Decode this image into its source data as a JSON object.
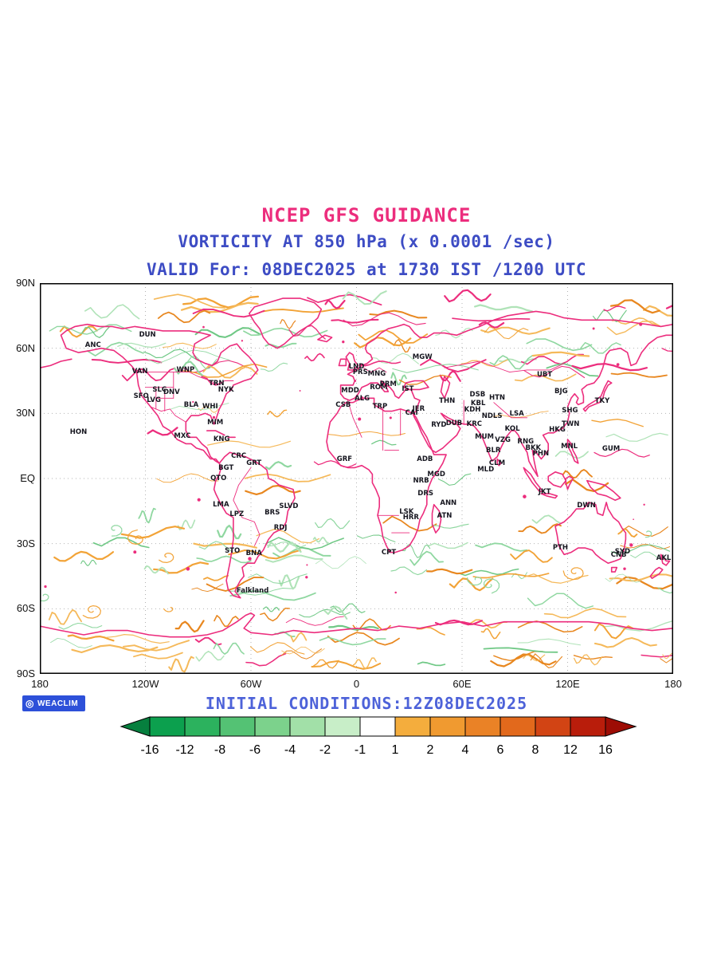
{
  "title": {
    "line1": "NCEP GFS GUIDANCE",
    "line2": "VORTICITY AT 850 hPa (x 0.0001 /sec)",
    "line3": "VALID For: 08DEC2025 at 1730 IST /1200 UTC"
  },
  "footer": {
    "initial_conditions": "INITIAL CONDITIONS:12Z08DEC2025",
    "brand": "WEACLIM"
  },
  "axes": {
    "lat_labels": [
      "90N",
      "60N",
      "30N",
      "EQ",
      "30S",
      "60S",
      "90S"
    ],
    "lon_labels": [
      "180",
      "120W",
      "60W",
      "0",
      "60E",
      "120E",
      "180"
    ]
  },
  "colors": {
    "magenta": "#ec2d7d",
    "blue": "#3d4cc4",
    "blue_light": "#4d62d9",
    "grid": "#b3b3b3",
    "badge": "#2d50d9",
    "coast": "#ec2d7d",
    "neg_green": "#8fd7a0",
    "pos_orange": "#f2a337",
    "label_text": "#16161f"
  },
  "colorbar": {
    "labels": [
      "-16",
      "-12",
      "-8",
      "-6",
      "-4",
      "-2",
      "-1",
      "1",
      "2",
      "4",
      "6",
      "8",
      "12",
      "16"
    ],
    "segment_colors": [
      "#0ca04e",
      "#2cb25e",
      "#54c274",
      "#7cd28c",
      "#a2e0a8",
      "#c8eec8",
      "#ffffff",
      "#f4ad3d",
      "#f09a30",
      "#ea8226",
      "#e2691c",
      "#d24414",
      "#b91d0b"
    ],
    "arrow_left_color": "#067f3e",
    "arrow_right_color": "#9d0d05"
  },
  "chart_data": {
    "type": "contour-map",
    "title": "NCEP GFS GUIDANCE",
    "variable": "vorticity",
    "level": "850 hPa",
    "units": "x 0.0001 /sec",
    "valid_time": "08DEC2025 at 1730 IST /1200 UTC",
    "initial_conditions": "12Z08DEC2025",
    "lon_range": [
      -180,
      180
    ],
    "lat_range": [
      -90,
      90
    ],
    "grid_interval_deg": 30,
    "colorbar_boundaries": [
      -16,
      -12,
      -8,
      -6,
      -4,
      -2,
      -1,
      1,
      2,
      4,
      6,
      8,
      12,
      16
    ],
    "negative_palette": "greens",
    "positive_palette": "orange-red",
    "coast_contour_color": "#ec2d7d"
  },
  "map_labels": [
    [
      "ANC",
      8.4,
      16.0
    ],
    [
      "DUN",
      17.0,
      13.3
    ],
    [
      "VAN",
      15.8,
      22.6
    ],
    [
      "WNP",
      23.0,
      22.3
    ],
    [
      "SFO",
      16.0,
      29.0
    ],
    [
      "LVG",
      18.0,
      29.9
    ],
    [
      "SLC",
      18.9,
      27.3
    ],
    [
      "DNV",
      20.8,
      27.9
    ],
    [
      "TRN",
      27.9,
      25.7
    ],
    [
      "NYK",
      29.4,
      27.4
    ],
    [
      "BLA",
      23.9,
      31.2
    ],
    [
      "WHI",
      26.9,
      31.6
    ],
    [
      "MIM",
      27.7,
      35.7
    ],
    [
      "MXC",
      22.5,
      39.2
    ],
    [
      "HON",
      6.1,
      38.2
    ],
    [
      "KNG",
      28.7,
      40.0
    ],
    [
      "CRC",
      31.4,
      44.2
    ],
    [
      "BGT",
      29.4,
      47.4
    ],
    [
      "GRT",
      33.8,
      46.2
    ],
    [
      "QTO",
      28.2,
      50.1
    ],
    [
      "LMA",
      28.6,
      56.7
    ],
    [
      "LPZ",
      31.1,
      59.2
    ],
    [
      "BRS",
      36.7,
      58.8
    ],
    [
      "SLVD",
      39.3,
      57.2
    ],
    [
      "RDJ",
      38.0,
      62.7
    ],
    [
      "STO",
      30.4,
      68.6
    ],
    [
      "BNA",
      33.8,
      69.2
    ],
    [
      "Falkland",
      33.6,
      78.7
    ],
    [
      "LND",
      50.0,
      21.4
    ],
    [
      "PRS",
      50.6,
      22.8
    ],
    [
      "MNG",
      53.2,
      23.3
    ],
    [
      "PRM",
      55.0,
      25.9
    ],
    [
      "ROM",
      53.5,
      26.7
    ],
    [
      "IST",
      58.1,
      27.2
    ],
    [
      "MDD",
      49.0,
      27.6
    ],
    [
      "ALG",
      50.9,
      29.6
    ],
    [
      "CSB",
      47.9,
      31.3
    ],
    [
      "TRP",
      53.7,
      31.7
    ],
    [
      "CAI",
      58.7,
      33.3
    ],
    [
      "JER",
      59.8,
      32.3
    ],
    [
      "MGW",
      60.4,
      19.0
    ],
    [
      "THN",
      64.3,
      30.2
    ],
    [
      "DSB",
      69.1,
      28.6
    ],
    [
      "KBL",
      69.2,
      30.8
    ],
    [
      "HTN",
      72.2,
      29.4
    ],
    [
      "KDH",
      68.3,
      32.4
    ],
    [
      "RYD",
      63.0,
      36.3
    ],
    [
      "DUB",
      65.4,
      35.9
    ],
    [
      "KRC",
      68.6,
      36.2
    ],
    [
      "NDLS",
      71.4,
      34.1
    ],
    [
      "LSA",
      75.3,
      33.5
    ],
    [
      "KOL",
      74.6,
      37.4
    ],
    [
      "VZG",
      73.1,
      40.2
    ],
    [
      "MUM",
      70.2,
      39.4
    ],
    [
      "BLR",
      71.6,
      42.8
    ],
    [
      "CLM",
      72.2,
      46.2
    ],
    [
      "MLD",
      70.4,
      47.7
    ],
    [
      "RNG",
      76.7,
      40.6
    ],
    [
      "BKK",
      77.9,
      42.3
    ],
    [
      "PHN",
      79.1,
      43.6
    ],
    [
      "GRF",
      48.1,
      45.1
    ],
    [
      "ADB",
      60.8,
      45.0
    ],
    [
      "MGD",
      62.6,
      48.9
    ],
    [
      "NRB",
      60.2,
      50.7
    ],
    [
      "DRS",
      60.9,
      53.8
    ],
    [
      "ANN",
      64.5,
      56.3
    ],
    [
      "ATN",
      63.9,
      59.6
    ],
    [
      "LSK",
      57.9,
      58.6
    ],
    [
      "HRR",
      58.6,
      59.9
    ],
    [
      "CPT",
      55.1,
      68.9
    ],
    [
      "UBT",
      79.7,
      23.4
    ],
    [
      "BJG",
      82.3,
      27.8
    ],
    [
      "TKY",
      88.8,
      30.2
    ],
    [
      "SHG",
      83.7,
      32.7
    ],
    [
      "TWN",
      83.8,
      36.1
    ],
    [
      "HKG",
      81.7,
      37.6
    ],
    [
      "MNL",
      83.6,
      41.9
    ],
    [
      "GUM",
      90.2,
      42.5
    ],
    [
      "JKT",
      79.7,
      53.5
    ],
    [
      "DWN",
      86.3,
      56.9
    ],
    [
      "PTH",
      82.2,
      67.7
    ],
    [
      "SYD",
      92.0,
      68.8
    ],
    [
      "CNB",
      91.4,
      69.6
    ],
    [
      "AKL",
      98.5,
      70.5
    ]
  ]
}
